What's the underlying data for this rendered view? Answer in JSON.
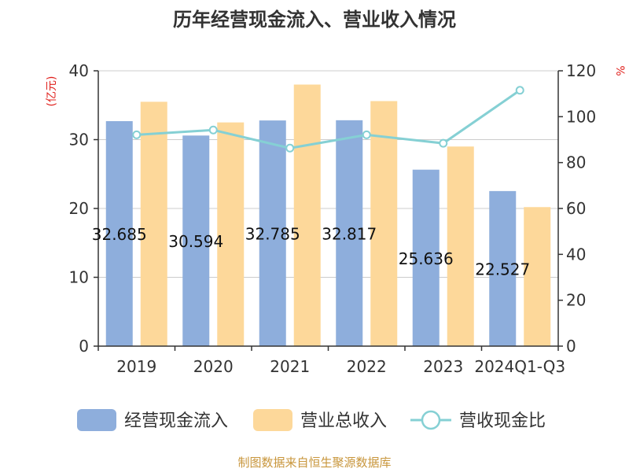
{
  "chart_data": {
    "type": "bar",
    "title": "历年经营现金流入、营业收入情况",
    "left_axis_label": "(亿元)",
    "right_axis_label": "%",
    "categories": [
      "2019",
      "2020",
      "2021",
      "2022",
      "2023",
      "2024Q1-Q3"
    ],
    "series": [
      {
        "name": "经营现金流入",
        "type": "bar",
        "axis": "left",
        "color": "#8eaedc",
        "values": [
          32.685,
          30.594,
          32.785,
          32.817,
          25.636,
          22.527
        ],
        "labels": [
          "32.685",
          "30.594",
          "32.785",
          "32.817",
          "25.636",
          "22.527"
        ]
      },
      {
        "name": "营业总收入",
        "type": "bar",
        "axis": "left",
        "color": "#fdd89a",
        "values": [
          35.5,
          32.5,
          38.0,
          35.6,
          29.0,
          20.2
        ]
      },
      {
        "name": "营收现金比",
        "type": "line",
        "axis": "right",
        "color": "#85d0d4",
        "values": [
          92.1,
          94.2,
          86.3,
          92.1,
          88.4,
          111.5
        ]
      }
    ],
    "left_ylim": [
      0,
      40
    ],
    "left_ticks": [
      0,
      10,
      20,
      30,
      40
    ],
    "right_ylim": [
      0,
      120
    ],
    "right_ticks": [
      0,
      20,
      40,
      60,
      80,
      100,
      120
    ],
    "grid": true,
    "legend_placement": "bottom",
    "legend": [
      "经营现金流入",
      "营业总收入",
      "营收现金比"
    ],
    "source": "制图数据来自恒生聚源数据库",
    "title_color": "#333333",
    "axis_label_color": "#e0201c",
    "source_color": "#c8963c"
  }
}
